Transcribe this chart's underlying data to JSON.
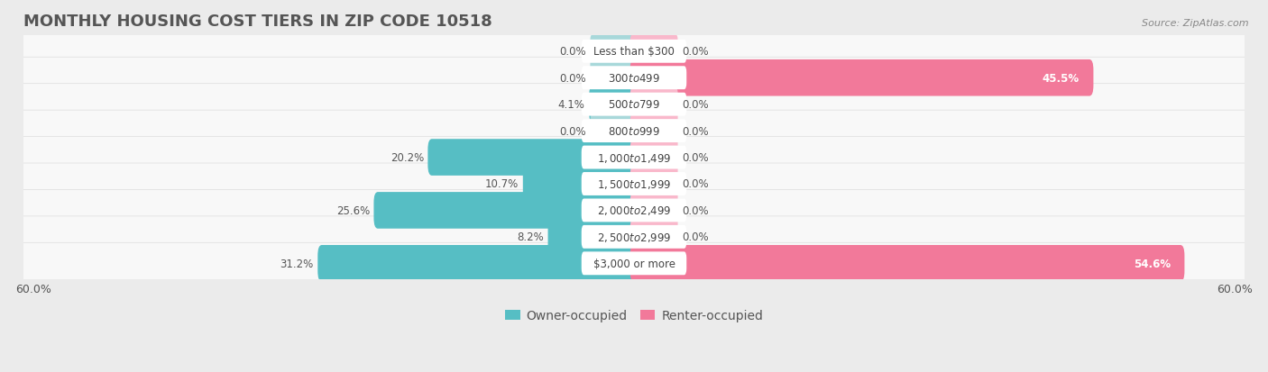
{
  "title": "Monthly Housing Cost Tiers in Zip Code 10518",
  "source": "Source: ZipAtlas.com",
  "categories": [
    "Less than $300",
    "$300 to $499",
    "$500 to $799",
    "$800 to $999",
    "$1,000 to $1,499",
    "$1,500 to $1,999",
    "$2,000 to $2,499",
    "$2,500 to $2,999",
    "$3,000 or more"
  ],
  "owner_values": [
    0.0,
    0.0,
    4.1,
    0.0,
    20.2,
    10.7,
    25.6,
    8.2,
    31.2
  ],
  "renter_values": [
    0.0,
    45.5,
    0.0,
    0.0,
    0.0,
    0.0,
    0.0,
    0.0,
    54.6
  ],
  "owner_color": "#56BEC4",
  "renter_color": "#F2799A",
  "owner_zero_color": "#A8D8DA",
  "renter_zero_color": "#F9B8CB",
  "axis_limit": 60.0,
  "bg_color": "#EBEBEB",
  "row_color_odd": "#F5F5F5",
  "row_color_even": "#FFFFFF",
  "bar_height": 0.58,
  "min_bar": 4.0,
  "label_fontsize": 8.5,
  "value_fontsize": 8.5,
  "title_fontsize": 13,
  "legend_fontsize": 10
}
